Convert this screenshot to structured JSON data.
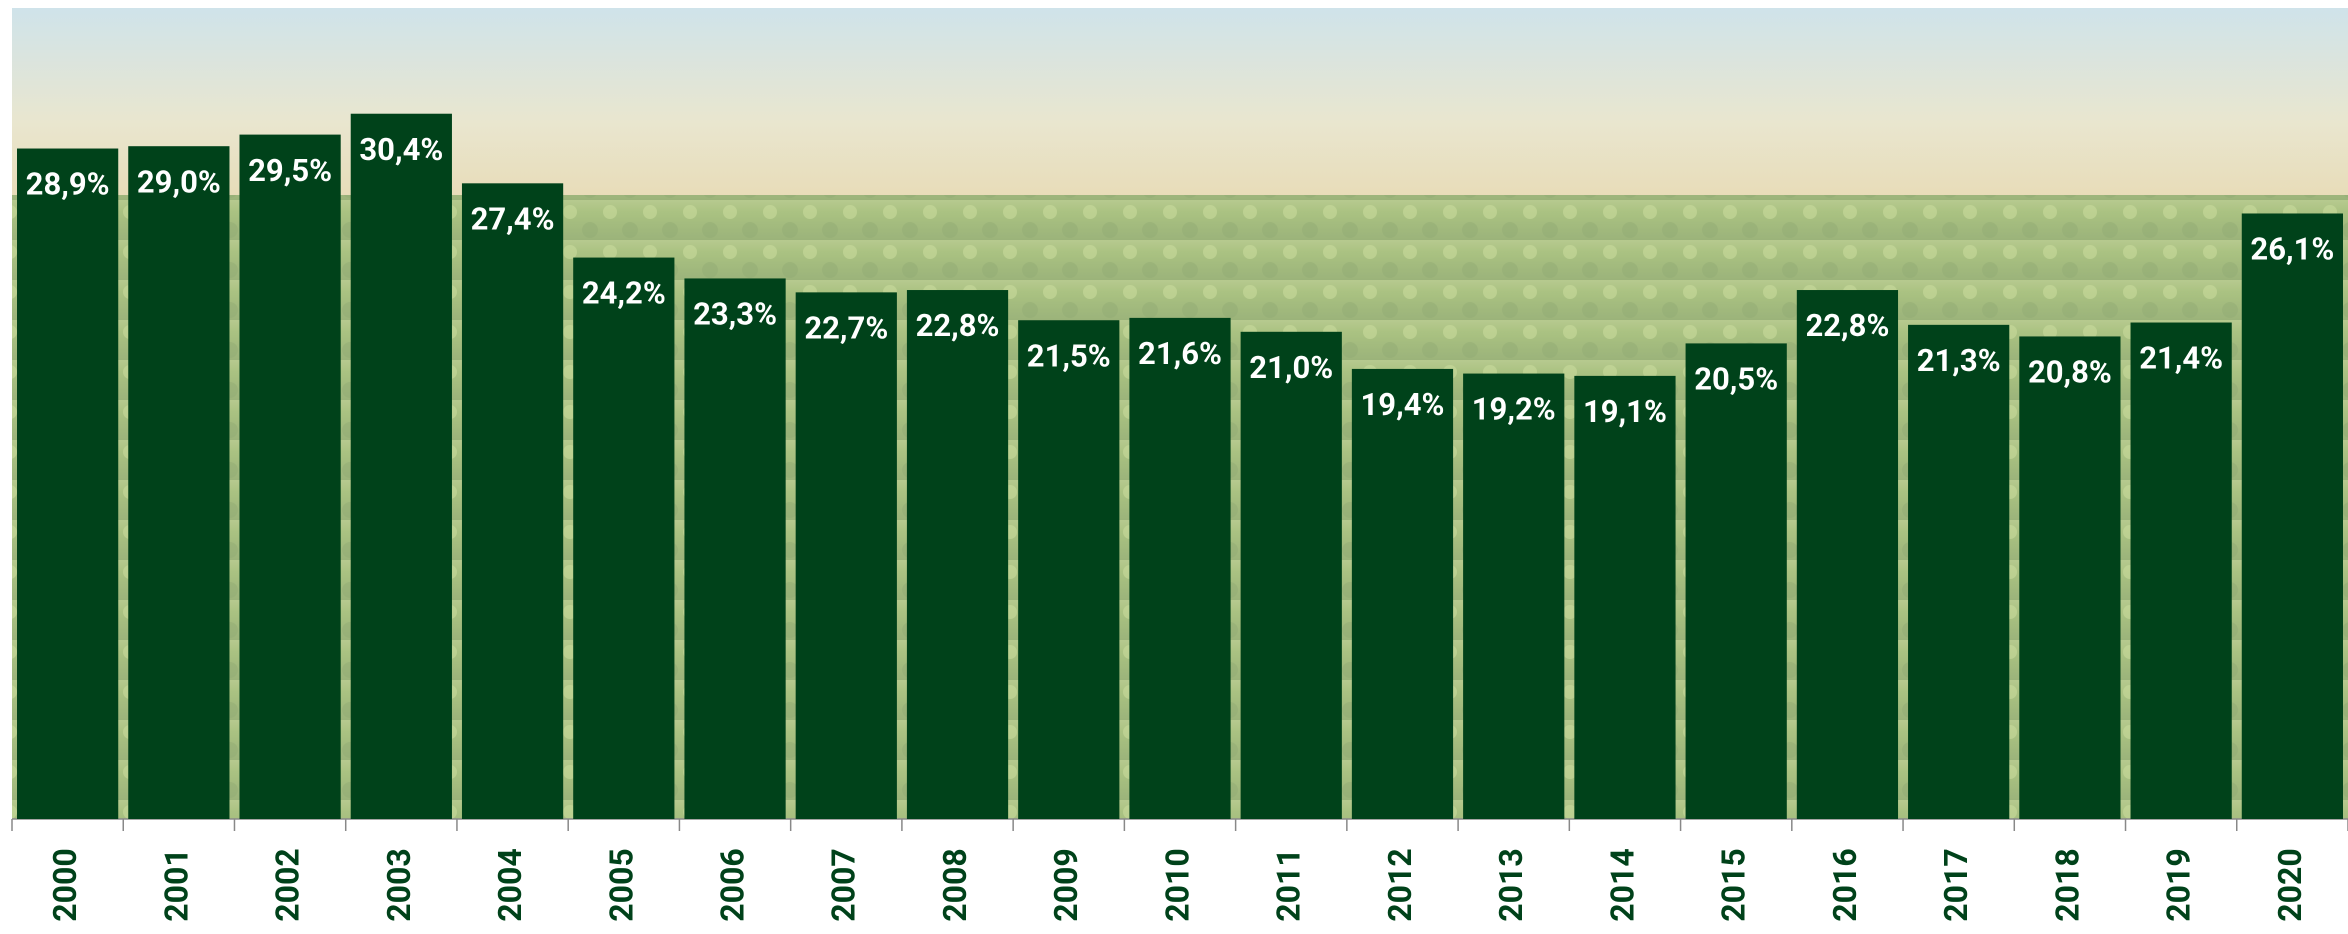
{
  "chart_data": {
    "type": "bar",
    "categories": [
      "2000",
      "2001",
      "2002",
      "2003",
      "2004",
      "2005",
      "2006",
      "2007",
      "2008",
      "2009",
      "2010",
      "2011",
      "2012",
      "2013",
      "2014",
      "2015",
      "2016",
      "2017",
      "2018",
      "2019",
      "2020"
    ],
    "values": [
      28.9,
      29.0,
      29.5,
      30.4,
      27.4,
      24.2,
      23.3,
      22.7,
      22.8,
      21.5,
      21.6,
      21.0,
      19.4,
      19.2,
      19.1,
      20.5,
      22.8,
      21.3,
      20.8,
      21.4,
      26.1
    ],
    "value_labels": [
      "28,9%",
      "29,0%",
      "29,5%",
      "30,4%",
      "27,4%",
      "24,2%",
      "23,3%",
      "22,7%",
      "22,8%",
      "21,5%",
      "21,6%",
      "21,0%",
      "19,4%",
      "19,2%",
      "19,1%",
      "20,5%",
      "22,8%",
      "21,3%",
      "20,8%",
      "21,4%",
      "26,1%"
    ],
    "color": "#00421a",
    "ylim": [
      0,
      35
    ]
  }
}
